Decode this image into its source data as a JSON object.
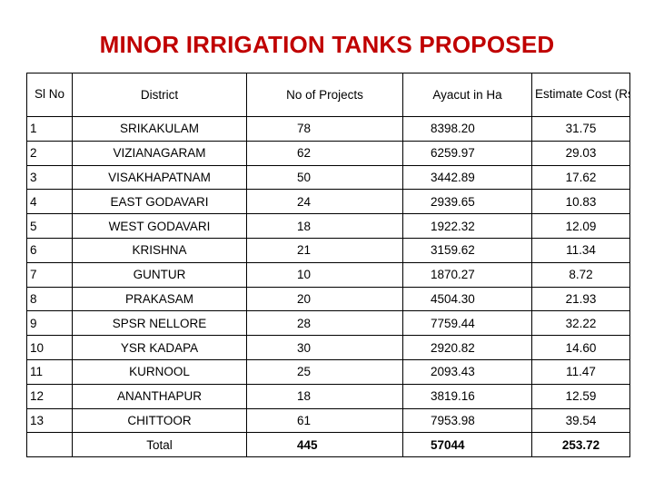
{
  "title": "MINOR IRRIGATION  TANKS PROPOSED",
  "table": {
    "headers": {
      "sl": "Sl No",
      "district": "District",
      "projects": "No of Projects",
      "ayacut": "Ayacut in Ha",
      "cost": "Estimate Cost (Rs. Crores)"
    },
    "rows": [
      {
        "sl": "1",
        "district": "SRIKAKULAM",
        "projects": "78",
        "ayacut": "8398.20",
        "cost": "31.75"
      },
      {
        "sl": "2",
        "district": "VIZIANAGARAM",
        "projects": "62",
        "ayacut": "6259.97",
        "cost": "29.03"
      },
      {
        "sl": "3",
        "district": "VISAKHAPATNAM",
        "projects": "50",
        "ayacut": "3442.89",
        "cost": "17.62"
      },
      {
        "sl": "4",
        "district": "EAST GODAVARI",
        "projects": "24",
        "ayacut": "2939.65",
        "cost": "10.83"
      },
      {
        "sl": "5",
        "district": "WEST GODAVARI",
        "projects": "18",
        "ayacut": "1922.32",
        "cost": "12.09"
      },
      {
        "sl": "6",
        "district": "KRISHNA",
        "projects": "21",
        "ayacut": "3159.62",
        "cost": "11.34"
      },
      {
        "sl": "7",
        "district": "GUNTUR",
        "projects": "10",
        "ayacut": "1870.27",
        "cost": "8.72"
      },
      {
        "sl": "8",
        "district": "PRAKASAM",
        "projects": "20",
        "ayacut": "4504.30",
        "cost": "21.93"
      },
      {
        "sl": "9",
        "district": "SPSR NELLORE",
        "projects": "28",
        "ayacut": "7759.44",
        "cost": "32.22"
      },
      {
        "sl": "10",
        "district": "YSR KADAPA",
        "projects": "30",
        "ayacut": "2920.82",
        "cost": "14.60"
      },
      {
        "sl": "11",
        "district": "KURNOOL",
        "projects": "25",
        "ayacut": "2093.43",
        "cost": "11.47"
      },
      {
        "sl": "12",
        "district": "ANANTHAPUR",
        "projects": "18",
        "ayacut": "3819.16",
        "cost": "12.59"
      },
      {
        "sl": "13",
        "district": "CHITTOOR",
        "projects": "61",
        "ayacut": "7953.98",
        "cost": "39.54"
      }
    ],
    "total": {
      "label": "Total",
      "projects": "445",
      "ayacut": "57044",
      "cost": "253.72"
    }
  },
  "colors": {
    "title": "#c00000",
    "text": "#000000",
    "border": "#000000",
    "background": "#ffffff"
  }
}
